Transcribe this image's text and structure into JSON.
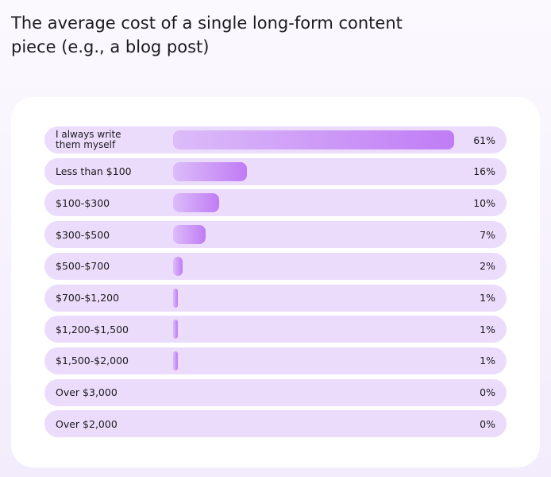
{
  "chart_data": {
    "type": "bar",
    "orientation": "horizontal",
    "title": "The average cost of a single long-form content piece (e.g., a blog post)",
    "categories": [
      "I always write them myself",
      "Less than $100",
      "$100-$300",
      "$300-$500",
      "$500-$700",
      "$700-$1,200",
      "$1,200-$1,500",
      "$1,500-$2,000",
      "Over $3,000",
      "Over $2,000"
    ],
    "values": [
      61,
      16,
      10,
      7,
      2,
      1,
      1,
      1,
      0,
      0
    ],
    "value_labels": [
      "61%",
      "16%",
      "10%",
      "7%",
      "2%",
      "1%",
      "1%",
      "1%",
      "0%",
      "0%"
    ],
    "color": "#c07cf5"
  }
}
